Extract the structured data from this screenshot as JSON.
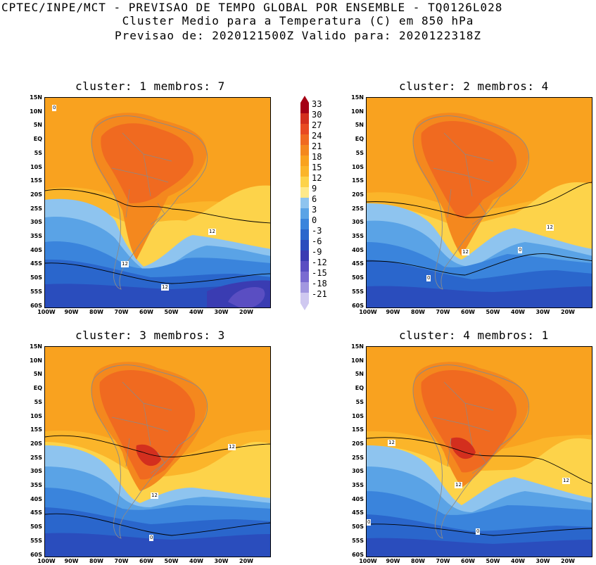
{
  "header": {
    "line1": "CPTEC/INPE/MCT - PREVISAO DE TEMPO GLOBAL POR ENSEMBLE - TQ0126L028",
    "line2": "Cluster Medio para a Temperatura (C) em 850 hPa",
    "line3": "Previsao de: 2020121500Z   Valido para: 2020122318Z"
  },
  "axes": {
    "lat_ticks": [
      "15N",
      "10N",
      "5N",
      "EQ",
      "5S",
      "10S",
      "15S",
      "20S",
      "25S",
      "30S",
      "35S",
      "40S",
      "45S",
      "50S",
      "55S",
      "60S"
    ],
    "lon_ticks": [
      "100W",
      "90W",
      "80W",
      "70W",
      "60W",
      "50W",
      "40W",
      "30W",
      "20W"
    ]
  },
  "panels": [
    {
      "title": "cluster: 1   membros: 7",
      "contour_labels": [
        "12",
        "12",
        "12",
        "0"
      ]
    },
    {
      "title": "cluster: 2   membros: 4",
      "contour_labels": [
        "12",
        "12",
        "0",
        "0"
      ]
    },
    {
      "title": "cluster: 3   membros: 3",
      "contour_labels": [
        "12",
        "12",
        "0"
      ]
    },
    {
      "title": "cluster: 4   membros: 1",
      "contour_labels": [
        "12",
        "12",
        "12",
        "0",
        "0"
      ]
    }
  ],
  "colorbar": {
    "labels": [
      "33",
      "30",
      "27",
      "24",
      "21",
      "18",
      "15",
      "12",
      "9",
      "6",
      "3",
      "0",
      "-3",
      "-6",
      "-9",
      "-12",
      "-15",
      "-18",
      "-21"
    ],
    "colors": [
      "#a50015",
      "#d32f1e",
      "#e84a22",
      "#f06a20",
      "#f4881e",
      "#f9a21f",
      "#fbb52a",
      "#fdd34a",
      "#fee98a",
      "#8ec4ef",
      "#5aa3e6",
      "#3a84dc",
      "#2a66cc",
      "#2a4dbd",
      "#3a3cb2",
      "#5a4ec2",
      "#7a6bd1",
      "#a297e0",
      "#cfc8f0"
    ]
  },
  "colors": {
    "land_border": "#8a8a8a",
    "contour": "#000000"
  }
}
